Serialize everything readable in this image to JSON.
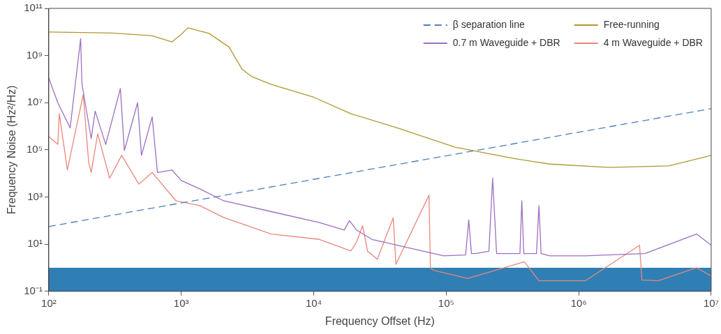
{
  "chart_data": {
    "type": "line",
    "xlabel": "Frequency Offset (Hz)",
    "ylabel": "Frequency Noise (Hz²/Hz)",
    "log": "xy",
    "grid": false,
    "legend": "top right",
    "marker": "none",
    "xlim": [
      100,
      10000000
    ],
    "ylim": [
      0.1,
      100000000000
    ],
    "xticks": [
      {
        "value": 100,
        "label": "10²"
      },
      {
        "value": 1000,
        "label": "10³"
      },
      {
        "value": 10000,
        "label": "10⁴"
      },
      {
        "value": 100000,
        "label": "10⁵"
      },
      {
        "value": 1000000,
        "label": "10⁶"
      },
      {
        "value": 10000000,
        "label": "10⁷"
      }
    ],
    "yticks": [
      {
        "value": 0.1,
        "label": "10⁻¹"
      },
      {
        "value": 10,
        "label": "10¹"
      },
      {
        "value": 1000,
        "label": "10³"
      },
      {
        "value": 100000,
        "label": "10⁵"
      },
      {
        "value": 10000000,
        "label": "10⁷"
      },
      {
        "value": 1000000000,
        "label": "10⁹"
      },
      {
        "value": 100000000000,
        "label": "10¹¹"
      }
    ],
    "bands": [
      {
        "axis": "y",
        "from": 0.1,
        "to": 1,
        "color": "#2f7fb5"
      }
    ],
    "series": [
      {
        "name": "β separation line",
        "color": "#4a7fc0",
        "line_style": "dashed",
        "x": [
          100,
          10000000
        ],
        "values": [
          56,
          5600000
        ]
      },
      {
        "name": "Free-running",
        "color": "#b0962f",
        "line_style": "solid",
        "x": [
          100,
          300,
          600,
          851,
          1000,
          1120,
          1620,
          2290,
          2880,
          3390,
          4790,
          10000,
          19100,
          42700,
          117000,
          331000,
          603000,
          1700000,
          4790000,
          10000000
        ],
        "values": [
          10000000000,
          9000000000,
          7000000000,
          3800000000,
          7900000000,
          15000000000,
          8700000000,
          2300000000,
          260000000,
          130000000,
          59000000,
          17000000,
          3400000,
          850000,
          130000,
          42000,
          25000,
          18000,
          21000,
          58000
        ]
      },
      {
        "name": "0.7 m Waveguide + DBR",
        "color": "#9b6fc0",
        "line_style": "solid",
        "x": [
          100,
          117,
          145,
          174,
          178,
          209,
          224,
          269,
          347,
          372,
          468,
          501,
          603,
          661,
          851,
          1000,
          1380,
          2090,
          4790,
          11000,
          17000,
          18600,
          21000,
          27500,
          95500,
          140000,
          148000,
          155000,
          166000,
          210000,
          224000,
          240000,
          269000,
          360000,
          372000,
          385000,
          480000,
          501000,
          520000,
          603000,
          1120000,
          3160000,
          7760000,
          10000000
        ],
        "values": [
          110000000,
          10000000,
          850000,
          5200000000,
          63000000,
          300000,
          4400000,
          170000,
          40000000,
          93000,
          10000000,
          58000,
          2500000,
          11000,
          14000,
          5000,
          2200,
          690,
          240,
          83,
          40,
          100,
          40,
          16,
          3.2,
          3.5,
          107,
          4,
          4,
          5,
          6300,
          4,
          4,
          4,
          690,
          4,
          4,
          430,
          4,
          3.2,
          3.2,
          4,
          27,
          9
        ]
      },
      {
        "name": "4 m Waveguide + DBR",
        "color": "#e8877a",
        "line_style": "solid",
        "x": [
          100,
          117,
          120,
          130,
          138,
          182,
          200,
          209,
          234,
          288,
          355,
          479,
          603,
          912,
          1380,
          2090,
          4790,
          11000,
          19100,
          21000,
          23400,
          25500,
          30200,
          39800,
          41700,
          74100,
          76000,
          79400,
          145000,
          389000,
          501000,
          1120000,
          2880000,
          3000000,
          3980000,
          7760000,
          10000000
        ],
        "values": [
          370000,
          170000,
          3400000,
          150000,
          14000,
          22000000,
          30000,
          11000,
          480000,
          6300,
          58000,
          3500,
          11000,
          690,
          430,
          135,
          27,
          16,
          5.2,
          12,
          60,
          5,
          2.3,
          130,
          1.4,
          1200,
          1,
          0.8,
          0.35,
          1.8,
          0.28,
          0.28,
          9,
          0.3,
          0.28,
          1,
          0.45
        ]
      }
    ]
  }
}
